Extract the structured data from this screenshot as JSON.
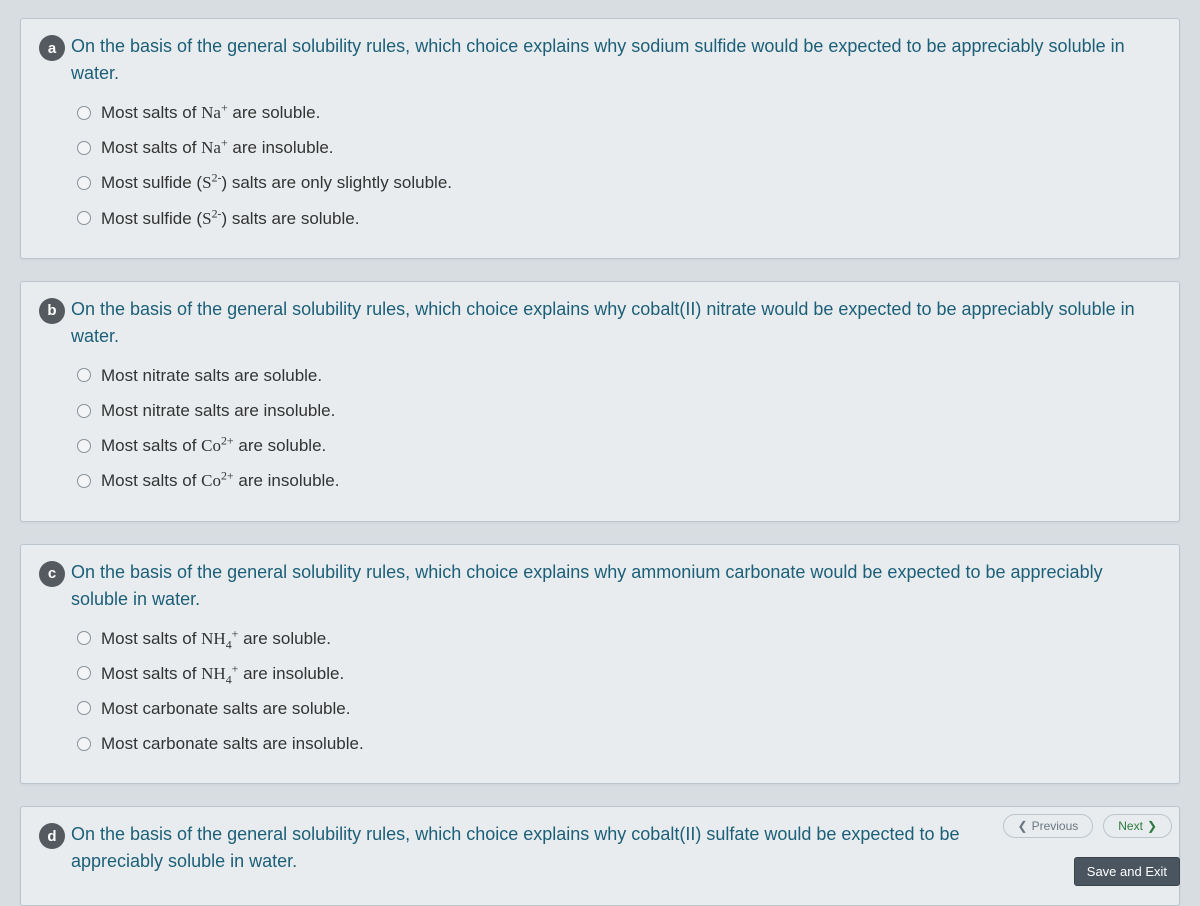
{
  "colors": {
    "page_bg": "#d8dde2",
    "card_bg": "#e8ecee",
    "card_border": "#bcc5cc",
    "badge_bg": "#555a60",
    "badge_fg": "#ffffff",
    "question_color": "#1c5f78",
    "option_color": "#333333",
    "radio_border": "#8a9299",
    "save_bg": "#4a5560"
  },
  "questions": [
    {
      "letter": "a",
      "prompt": "On the basis of the general solubility rules, which choice explains why sodium sulfide would be expected to be appreciably soluble in water.",
      "options": [
        {
          "pre": "Most salts of ",
          "chem": "Na<sup>+</sup>",
          "post": " are soluble."
        },
        {
          "pre": "Most salts of ",
          "chem": "Na<sup>+</sup>",
          "post": " are insoluble."
        },
        {
          "pre": "Most sulfide (",
          "chem": "S<sup>2-</sup>",
          "post": ") salts are only slightly soluble."
        },
        {
          "pre": "Most sulfide (",
          "chem": "S<sup>2-</sup>",
          "post": ") salts are soluble."
        }
      ]
    },
    {
      "letter": "b",
      "prompt": "On the basis of the general solubility rules, which choice explains why cobalt(II) nitrate would be expected to be appreciably soluble in water.",
      "options": [
        {
          "pre": "Most nitrate salts are soluble.",
          "chem": "",
          "post": ""
        },
        {
          "pre": "Most nitrate salts are insoluble.",
          "chem": "",
          "post": ""
        },
        {
          "pre": "Most salts of ",
          "chem": "Co<sup>2+</sup>",
          "post": " are soluble."
        },
        {
          "pre": "Most salts of ",
          "chem": "Co<sup>2+</sup>",
          "post": " are insoluble."
        }
      ]
    },
    {
      "letter": "c",
      "prompt": "On the basis of the general solubility rules, which choice explains why ammonium carbonate would be expected to be appreciably soluble in water.",
      "options": [
        {
          "pre": "Most salts of ",
          "chem": "NH<sub>4</sub><sup>+</sup>",
          "post": " are soluble."
        },
        {
          "pre": "Most salts of ",
          "chem": "NH<sub>4</sub><sup>+</sup>",
          "post": " are insoluble."
        },
        {
          "pre": "Most carbonate salts are soluble.",
          "chem": "",
          "post": ""
        },
        {
          "pre": "Most carbonate salts are insoluble.",
          "chem": "",
          "post": ""
        }
      ]
    },
    {
      "letter": "d",
      "prompt": "On the basis of the general solubility rules, which choice explains why cobalt(II) sulfate would be expected to be appreciably soluble in water.",
      "options": []
    }
  ],
  "nav": {
    "previous": "Previous",
    "next": "Next"
  },
  "save_exit": "Save and Exit"
}
